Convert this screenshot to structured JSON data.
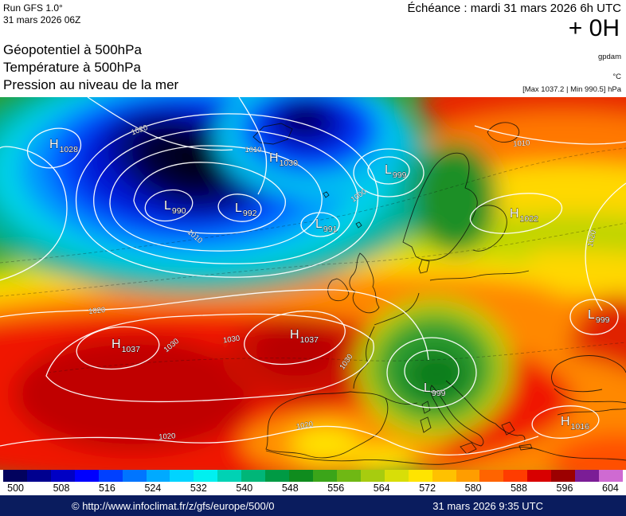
{
  "header": {
    "run_line1": "Run GFS 1.0°",
    "run_line2": "31 mars 2026 06Z",
    "echeance": "Échéance : mardi 31 mars 2026 6h UTC",
    "step": "+ 0H",
    "title_line1": "Géopotentiel à 500hPa",
    "title_line2": "Température à 500hPa",
    "title_line3": "Pression au niveau de la mer",
    "unit_right1": "gpdam",
    "unit_right2": "°C",
    "unit_right3": "[Max 1037.2 | Min 990.5] hPa"
  },
  "map": {
    "centers": [
      {
        "letter": "H",
        "value": "1028"
      },
      {
        "letter": "H",
        "value": "1030"
      },
      {
        "letter": "L",
        "value": "990"
      },
      {
        "letter": "L",
        "value": "992"
      },
      {
        "letter": "L",
        "value": "991"
      },
      {
        "letter": "L",
        "value": "999"
      },
      {
        "letter": "H",
        "value": "1022"
      },
      {
        "letter": "H",
        "value": "1037"
      },
      {
        "letter": "H",
        "value": "1037"
      },
      {
        "letter": "L",
        "value": "999"
      },
      {
        "letter": "H",
        "value": "1016"
      },
      {
        "letter": "L",
        "value": "999"
      }
    ],
    "isobar_labels": [
      {
        "t": "1020"
      },
      {
        "t": "1010"
      },
      {
        "t": "1010"
      },
      {
        "t": "1000"
      },
      {
        "t": "1020"
      },
      {
        "t": "1030"
      },
      {
        "t": "1030"
      },
      {
        "t": "1030"
      },
      {
        "t": "1020"
      },
      {
        "t": "1020"
      },
      {
        "t": "1010"
      },
      {
        "t": "1020"
      }
    ]
  },
  "colorbar": {
    "unit": "gpdam",
    "labels": [
      "500",
      "508",
      "516",
      "524",
      "532",
      "540",
      "548",
      "556",
      "564",
      "572",
      "580",
      "588",
      "596",
      "604"
    ],
    "colors": [
      "#02025e",
      "#00008f",
      "#0000c4",
      "#0000ff",
      "#0040ff",
      "#0075ff",
      "#00aaff",
      "#00d4ff",
      "#00f0f0",
      "#00d2b4",
      "#00b678",
      "#009a44",
      "#0f8c1e",
      "#3ba519",
      "#6fb814",
      "#a7cc0f",
      "#d8de08",
      "#ffe400",
      "#ffc100",
      "#ff9d00",
      "#ff6400",
      "#ff3c00",
      "#d80000",
      "#9c0000",
      "#7b1d96",
      "#cf6ad2"
    ]
  },
  "footer": {
    "copyright": "© http://www.infoclimat.fr/z/gfs/europe/500/0",
    "datetime": "31 mars 2026 9:35 UTC"
  }
}
